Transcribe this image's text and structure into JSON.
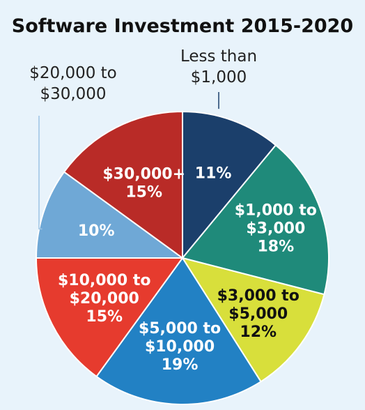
{
  "chart_data": {
    "type": "pie",
    "title": "Software Investment 2015-2020",
    "slices": [
      {
        "category_lines": [],
        "value": 11,
        "value_label": "11%",
        "color": "#1b3f6b",
        "text_color": "#ffffff",
        "outside_lines": [
          "Less than",
          "$1,000"
        ]
      },
      {
        "category_lines": [
          "$1,000 to",
          "$3,000"
        ],
        "value": 18,
        "value_label": "18%",
        "color": "#1f8a7a",
        "text_color": "#ffffff"
      },
      {
        "category_lines": [
          "$3,000 to",
          "$5,000"
        ],
        "value": 12,
        "value_label": "12%",
        "color": "#d8df3b",
        "text_color": "#111111"
      },
      {
        "category_lines": [
          "$5,000 to",
          "$10,000"
        ],
        "value": 19,
        "value_label": "19%",
        "color": "#2281c4",
        "text_color": "#ffffff"
      },
      {
        "category_lines": [
          "$10,000 to",
          "$20,000"
        ],
        "value": 15,
        "value_label": "15%",
        "color": "#e63b2e",
        "text_color": "#ffffff"
      },
      {
        "category_lines": [],
        "value": 10,
        "value_label": "10%",
        "color": "#6fa8d6",
        "text_color": "#ffffff",
        "outside_lines": [
          "$20,000 to",
          "$30,000"
        ]
      },
      {
        "category_lines": [
          "$30,000+"
        ],
        "value": 15,
        "value_label": "15%",
        "color": "#b92b27",
        "text_color": "#ffffff"
      }
    ]
  }
}
